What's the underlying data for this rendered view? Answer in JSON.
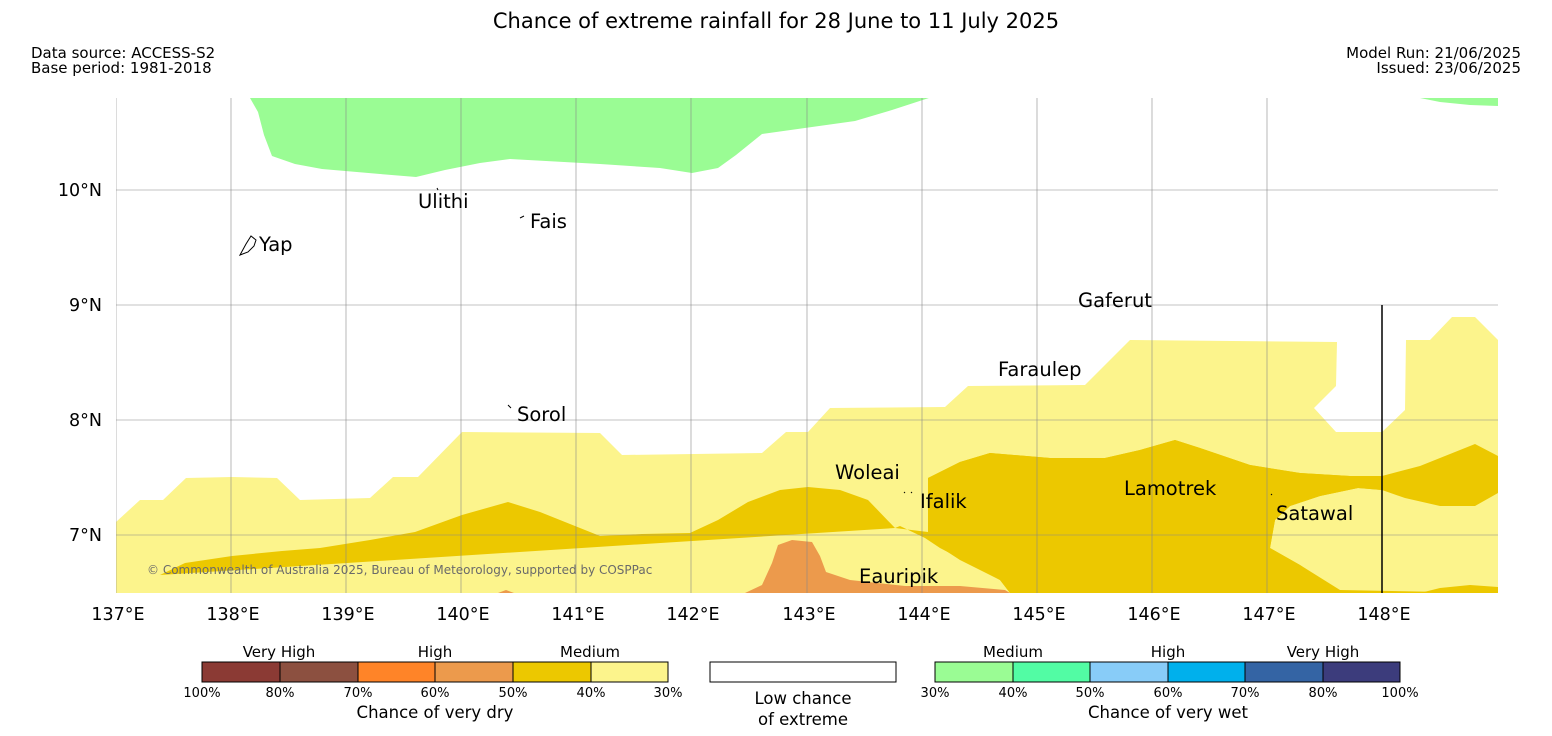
{
  "header": {
    "title": "Chance of extreme rainfall for 28 June to 11 July 2025",
    "data_source": "Data source: ACCESS-S2",
    "base_period": "Base period: 1981-2018",
    "model_run": "Model Run: 21/06/2025",
    "issued": "Issued: 23/06/2025"
  },
  "map": {
    "lon_labels": [
      "137°E",
      "138°E",
      "139°E",
      "140°E",
      "141°E",
      "142°E",
      "143°E",
      "144°E",
      "145°E",
      "146°E",
      "147°E",
      "148°E"
    ],
    "lat_labels": [
      "10°N",
      "9°N",
      "8°N",
      "7°N"
    ],
    "places": [
      "Ulithi",
      "Fais",
      "Yap",
      "Gaferut",
      "Faraulep",
      "Sorol",
      "Woleai",
      "Ifalik",
      "Lamotrek",
      "Satawal",
      "Eauripik"
    ],
    "copyright": "© Commonwealth of Australia 2025, Bureau of Meteorology, supported by COSPPac"
  },
  "legend": {
    "dry": {
      "categories": [
        "Very High",
        "High",
        "Medium"
      ],
      "colors": [
        "#8b3a34",
        "#8c5040",
        "#ff8428",
        "#ec9a4c",
        "#ecc800",
        "#fcf48c"
      ],
      "ticks": [
        "100%",
        "80%",
        "70%",
        "60%",
        "50%",
        "40%",
        "30%"
      ],
      "caption": "Chance of very dry"
    },
    "low": {
      "line1": "Low chance",
      "line2": "of extreme"
    },
    "wet": {
      "categories": [
        "Medium",
        "High",
        "Very High"
      ],
      "colors": [
        "#9afc94",
        "#52fca4",
        "#88ccf8",
        "#00b0ec",
        "#3464a4",
        "#3c3c7c"
      ],
      "ticks": [
        "30%",
        "40%",
        "50%",
        "60%",
        "70%",
        "80%",
        "100%"
      ],
      "caption": "Chance of very wet"
    }
  }
}
